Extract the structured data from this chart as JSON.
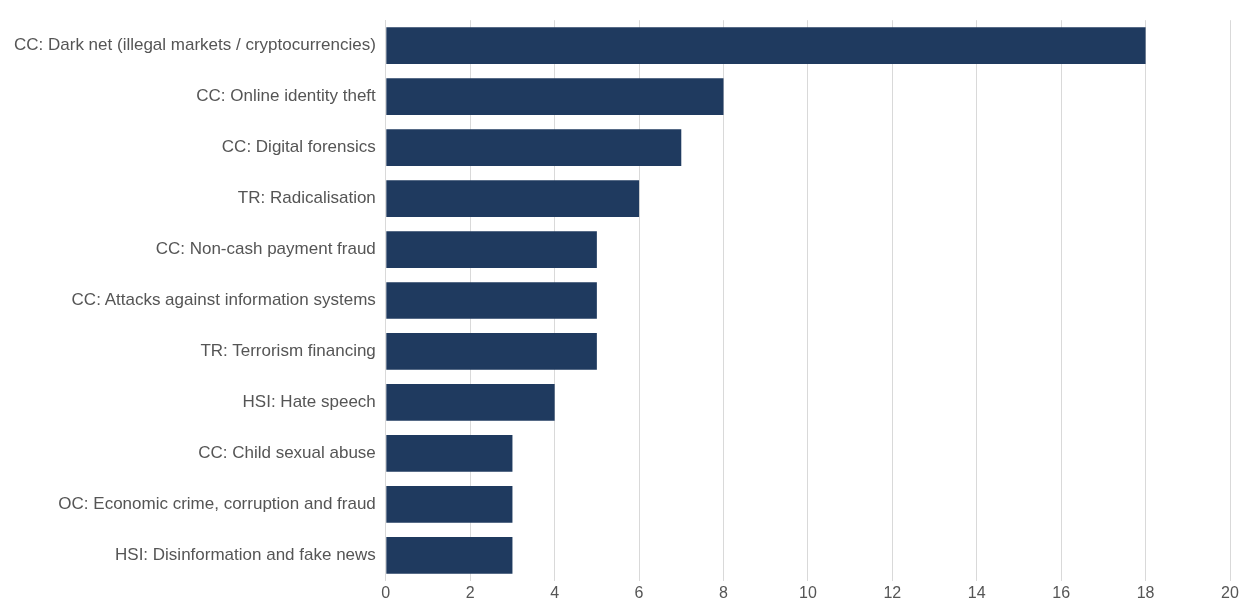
{
  "chart_data": {
    "type": "bar",
    "orientation": "horizontal",
    "categories": [
      "CC: Dark net (illegal markets / cryptocurrencies)",
      "CC: Online identity theft",
      "CC: Digital forensics",
      "TR: Radicalisation",
      "CC: Non-cash payment fraud",
      "CC: Attacks against information systems",
      "TR: Terrorism financing",
      "HSI: Hate speech",
      "CC: Child sexual abuse",
      "OC: Economic crime, corruption and fraud",
      "HSI: Disinformation and fake news"
    ],
    "values": [
      18,
      8,
      7,
      6,
      5,
      5,
      5,
      4,
      3,
      3,
      3
    ],
    "color": "#1f3a5f",
    "xlim": [
      0,
      20
    ],
    "xticks": [
      0,
      2,
      4,
      6,
      8,
      10,
      12,
      14,
      16,
      18,
      20
    ],
    "grid": "x",
    "legend": false
  }
}
